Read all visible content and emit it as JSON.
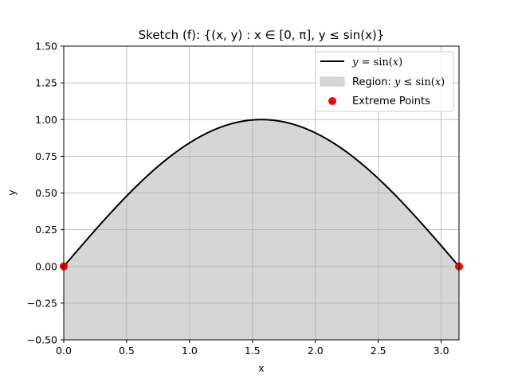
{
  "chart_data": {
    "type": "area",
    "title": "Sketch (f): {(x, y) : x ∈ [0, π], y ≤ sin(x)}",
    "xlabel": "x",
    "ylabel": "y",
    "xlim": [
      0,
      3.14159
    ],
    "ylim": [
      -0.5,
      1.5
    ],
    "xticks": [
      0.0,
      0.5,
      1.0,
      1.5,
      2.0,
      2.5,
      3.0
    ],
    "xtick_labels": [
      "0.0",
      "0.5",
      "1.0",
      "1.5",
      "2.0",
      "2.5",
      "3.0"
    ],
    "yticks": [
      -0.5,
      -0.25,
      0.0,
      0.25,
      0.5,
      0.75,
      1.0,
      1.25,
      1.5
    ],
    "ytick_labels": [
      "−0.50",
      "−0.25",
      "0.00",
      "0.25",
      "0.50",
      "0.75",
      "1.00",
      "1.25",
      "1.50"
    ],
    "grid": true,
    "legend_position": "top-right",
    "series": [
      {
        "name": "y = sin(x)",
        "kind": "line",
        "color": "#000000",
        "x": [
          0.0,
          0.314,
          0.628,
          0.942,
          1.257,
          1.571,
          1.885,
          2.199,
          2.513,
          2.827,
          3.142
        ],
        "y": [
          0.0,
          0.309,
          0.588,
          0.809,
          0.951,
          1.0,
          0.951,
          0.809,
          0.588,
          0.309,
          0.0
        ]
      },
      {
        "name": "Region: y ≤ sin(x)",
        "kind": "fill",
        "color": "#d6d6d6",
        "lower": -0.5,
        "upper_series": "y = sin(x)"
      },
      {
        "name": "Extreme Points",
        "kind": "scatter",
        "color": "#ff0000",
        "x": [
          0.0,
          3.142
        ],
        "y": [
          0.0,
          0.0
        ]
      }
    ]
  }
}
